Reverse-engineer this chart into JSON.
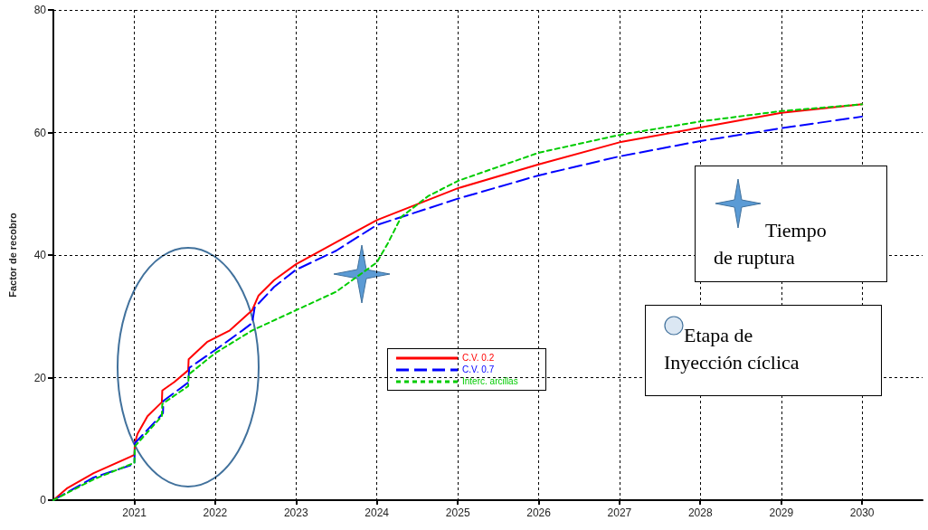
{
  "chart_data": {
    "type": "line",
    "ylabel": "Factor de recobro",
    "xlim": [
      "2020-01-01",
      "2030-10-01"
    ],
    "xticks": [
      "2021",
      "2022",
      "2023",
      "2024",
      "2025",
      "2026",
      "2027",
      "2028",
      "2029",
      "2030"
    ],
    "ylim": [
      0,
      80
    ],
    "yticks": [
      0,
      20,
      40,
      60,
      80
    ],
    "grid": true,
    "legend": "bottom",
    "marker": "none",
    "annotations": [
      "Tiempo de ruptura",
      "Etapa de Inyección cíclica"
    ],
    "series": [
      {
        "name": "C.V. 0.2",
        "color": "#ff0000",
        "line_style": "solid",
        "x": [
          "2020-01-01",
          "2020-03-01",
          "2020-07-01",
          "2020-12-15",
          "2021-01-01",
          "2021-01-03",
          "2021-01-15",
          "2021-03-01",
          "2021-05-05",
          "2021-05-07",
          "2021-07-01",
          "2021-09-01",
          "2021-09-03",
          "2021-11-25",
          "2022-03-08",
          "2022-06-17",
          "2022-07-16",
          "2022-09-24",
          "2023-01-01",
          "2023-07-01",
          "2024-01-01",
          "2025-01-01",
          "2026-01-01",
          "2027-01-01",
          "2028-01-01",
          "2029-01-01",
          "2030-01-01"
        ],
        "values": [
          0,
          1.9,
          4.4,
          7.1,
          7.4,
          9.3,
          10.8,
          13.7,
          16.0,
          17.9,
          19.3,
          21.2,
          23.0,
          25.8,
          27.7,
          31.0,
          33.4,
          35.9,
          38.5,
          42.1,
          45.7,
          50.9,
          54.8,
          58.4,
          60.8,
          63.2,
          64.6
        ]
      },
      {
        "name": "C.V. 0.7",
        "color": "#0000ff",
        "line_style": "dashed",
        "x": [
          "2020-01-01",
          "2020-07-01",
          "2021-01-01",
          "2021-01-03",
          "2021-04-20",
          "2021-05-10",
          "2021-05-12",
          "2021-09-01",
          "2021-09-06",
          "2022-01-01",
          "2022-05-04",
          "2022-06-17",
          "2022-06-28",
          "2022-09-24",
          "2023-01-01",
          "2023-07-01",
          "2024-01-01",
          "2025-01-01",
          "2026-01-01",
          "2027-01-01",
          "2028-01-01",
          "2029-01-01",
          "2030-01-01"
        ],
        "values": [
          0,
          3.7,
          5.9,
          9.3,
          13.4,
          14.2,
          16.2,
          19.2,
          21.6,
          24.5,
          27.7,
          28.9,
          31.4,
          34.8,
          37.6,
          40.7,
          44.9,
          49.2,
          53.0,
          56.1,
          58.6,
          60.7,
          62.6
        ]
      },
      {
        "name": "Interc. arcillas",
        "color": "#00cc00",
        "line_style": "dotted",
        "x": [
          "2020-01-01",
          "2020-07-01",
          "2021-01-01",
          "2021-01-03",
          "2021-05-05",
          "2021-05-07",
          "2021-09-01",
          "2021-09-03",
          "2022-01-01",
          "2022-06-17",
          "2023-01-01",
          "2023-07-01",
          "2024-01-01",
          "2024-02-18",
          "2024-04-20",
          "2024-08-19",
          "2025-01-01",
          "2026-01-01",
          "2027-01-01",
          "2028-01-01",
          "2029-01-01",
          "2030-01-01"
        ],
        "values": [
          0,
          3.4,
          6.1,
          8.8,
          13.7,
          15.7,
          18.6,
          20.5,
          24.0,
          27.7,
          31.0,
          34.0,
          38.8,
          41.8,
          46.2,
          49.6,
          52.1,
          56.7,
          59.6,
          61.8,
          63.5,
          64.6
        ]
      }
    ]
  }
}
